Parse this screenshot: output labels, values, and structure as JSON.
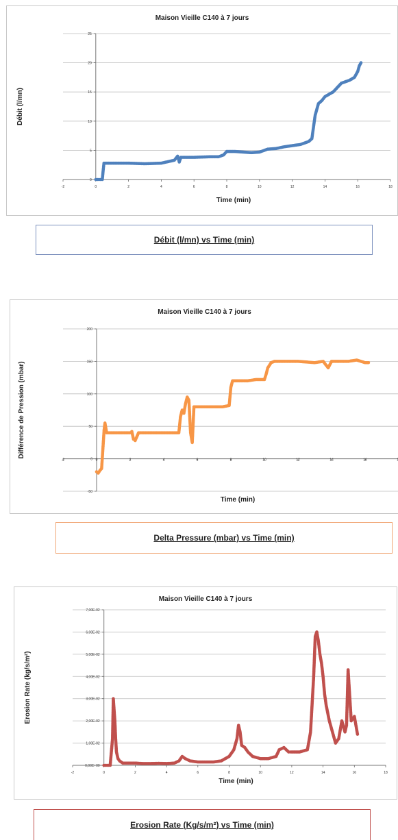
{
  "charts": [
    {
      "title": "Maison Vieille C140 à 7 jours",
      "xlabel": "Time (min)",
      "ylabel": "Débit (l/mn)",
      "caption": "Débit (l/mn)   vs Time (min)",
      "xticks": [
        "-2",
        "0",
        "2",
        "4",
        "6",
        "8",
        "10",
        "12",
        "14",
        "16",
        "18"
      ],
      "yticks": [
        "0",
        "5",
        "10",
        "15",
        "20",
        "25"
      ],
      "color": "#4f81bd"
    },
    {
      "title": "Maison Vieille C140 à 7 jours",
      "xlabel": "Time (min)",
      "ylabel": "Différence de Pression (mbar)",
      "caption": "Delta Pressure (mbar)  vs  Time (min)",
      "xticks": [
        "-2",
        "0",
        "2",
        "4",
        "6",
        "8",
        "10",
        "12",
        "14",
        "16",
        "18"
      ],
      "yticks": [
        "-50",
        "0",
        "50",
        "100",
        "150",
        "200"
      ],
      "color": "#f79646"
    },
    {
      "title": "Maison Vieille C140 à 7 jours",
      "xlabel": "Time (min)",
      "ylabel": "Erosion Rate (kg/s/m²)",
      "caption": "Erosion Rate (Kg/s/m²)   vs     Time (min)",
      "xticks": [
        "-2",
        "0",
        "2",
        "4",
        "6",
        "8",
        "10",
        "12",
        "14",
        "16",
        "18"
      ],
      "yticks": [
        "0,00E+00",
        "1,00E-02",
        "2,00E-02",
        "3,00E-02",
        "4,00E-02",
        "5,00E-02",
        "6,00E-02",
        "7,00E-02"
      ],
      "color": "#c0504d"
    }
  ],
  "chart_data": [
    {
      "type": "scatter",
      "title": "Maison Vieille C140 à 7 jours",
      "xlabel": "Time (min)",
      "ylabel": "Débit (l/mn)",
      "xlim": [
        -2,
        18
      ],
      "ylim": [
        0,
        25
      ],
      "grid": "horizontal",
      "series": [
        {
          "x": [
            0,
            0.2,
            0.3,
            0.4,
            0.45,
            0.5,
            1,
            2,
            3,
            4,
            4.8,
            5,
            5.1,
            5.2,
            5.5,
            6,
            7,
            7.5,
            7.8,
            8,
            8.5,
            9,
            9.5,
            10,
            10.5,
            11,
            11.5,
            12,
            12.5,
            13,
            13.2,
            13.3,
            13.4,
            13.5,
            13.6,
            13.8,
            14,
            14.5,
            15,
            15.5,
            15.8,
            16,
            16.1,
            16.2
          ],
          "y": [
            0,
            0,
            0,
            0,
            1.5,
            2.8,
            2.8,
            2.8,
            2.7,
            2.8,
            3.3,
            4,
            3,
            3.8,
            3.8,
            3.8,
            3.9,
            3.9,
            4.2,
            4.8,
            4.8,
            4.7,
            4.6,
            4.7,
            5.2,
            5.3,
            5.6,
            5.8,
            6,
            6.5,
            7,
            9,
            11,
            12,
            13,
            13.5,
            14.2,
            15,
            16.5,
            17,
            17.5,
            18.5,
            19.5,
            20
          ]
        }
      ]
    },
    {
      "type": "scatter",
      "title": "Maison Vieille C140 à 7 jours",
      "xlabel": "Time (min)",
      "ylabel": "Différence de Pression (mbar)",
      "xlim": [
        -2,
        18
      ],
      "ylim": [
        -50,
        200
      ],
      "grid": "horizontal",
      "series": [
        {
          "x": [
            0,
            0.1,
            0.2,
            0.3,
            0.35,
            0.4,
            0.45,
            0.5,
            0.6,
            1,
            1.5,
            2,
            2.1,
            2.2,
            2.3,
            2.5,
            3,
            3.5,
            4,
            4.5,
            4.9,
            5,
            5.1,
            5.2,
            5.3,
            5.4,
            5.5,
            5.6,
            5.7,
            5.8,
            6,
            6.5,
            7,
            7.5,
            7.9,
            8,
            8.1,
            8.5,
            9,
            9.5,
            10,
            10.1,
            10.2,
            10.4,
            10.6,
            11,
            11.5,
            12,
            12.5,
            13,
            13.5,
            13.8,
            14,
            14.5,
            15,
            15.5,
            16,
            16.2
          ],
          "y": [
            -20,
            -22,
            -18,
            -15,
            5,
            25,
            45,
            55,
            40,
            40,
            40,
            40,
            42,
            30,
            28,
            40,
            40,
            40,
            40,
            40,
            40,
            65,
            75,
            70,
            85,
            95,
            90,
            40,
            25,
            80,
            80,
            80,
            80,
            80,
            82,
            110,
            120,
            120,
            120,
            122,
            122,
            130,
            140,
            148,
            150,
            150,
            150,
            150,
            149,
            148,
            150,
            140,
            150,
            150,
            150,
            152,
            148,
            148
          ]
        }
      ]
    },
    {
      "type": "scatter",
      "title": "Maison Vieille C140 à 7 jours",
      "xlabel": "Time (min)",
      "ylabel": "Erosion Rate (kg/s/m²)",
      "xlim": [
        -2,
        18
      ],
      "ylim": [
        0,
        0.07
      ],
      "grid": "horizontal",
      "series": [
        {
          "x": [
            0,
            0.2,
            0.4,
            0.5,
            0.55,
            0.6,
            0.65,
            0.7,
            0.75,
            0.8,
            0.9,
            1,
            1.2,
            1.5,
            2,
            2.5,
            3,
            3.5,
            4,
            4.5,
            4.8,
            5,
            5.2,
            5.5,
            6,
            6.5,
            7,
            7.5,
            8,
            8.3,
            8.5,
            8.6,
            8.7,
            8.8,
            9,
            9.2,
            9.5,
            10,
            10.5,
            11,
            11.2,
            11.5,
            11.8,
            12,
            12.5,
            13,
            13.2,
            13.4,
            13.5,
            13.6,
            13.7,
            13.8,
            13.9,
            14,
            14.1,
            14.2,
            14.4,
            14.6,
            14.8,
            15,
            15.2,
            15.4,
            15.5,
            15.6,
            15.8,
            16,
            16.2
          ],
          "y": [
            0,
            0,
            0,
            0.008,
            0.012,
            0.03,
            0.025,
            0.02,
            0.012,
            0.006,
            0.003,
            0.002,
            0.001,
            0.001,
            0.001,
            0.0008,
            0.0008,
            0.0009,
            0.0008,
            0.001,
            0.002,
            0.004,
            0.003,
            0.002,
            0.0015,
            0.0015,
            0.0015,
            0.002,
            0.004,
            0.007,
            0.012,
            0.018,
            0.015,
            0.009,
            0.008,
            0.006,
            0.004,
            0.003,
            0.003,
            0.004,
            0.007,
            0.008,
            0.006,
            0.006,
            0.006,
            0.007,
            0.015,
            0.04,
            0.058,
            0.06,
            0.056,
            0.05,
            0.046,
            0.04,
            0.032,
            0.027,
            0.02,
            0.015,
            0.01,
            0.012,
            0.02,
            0.015,
            0.018,
            0.043,
            0.02,
            0.022,
            0.014
          ]
        }
      ]
    }
  ]
}
